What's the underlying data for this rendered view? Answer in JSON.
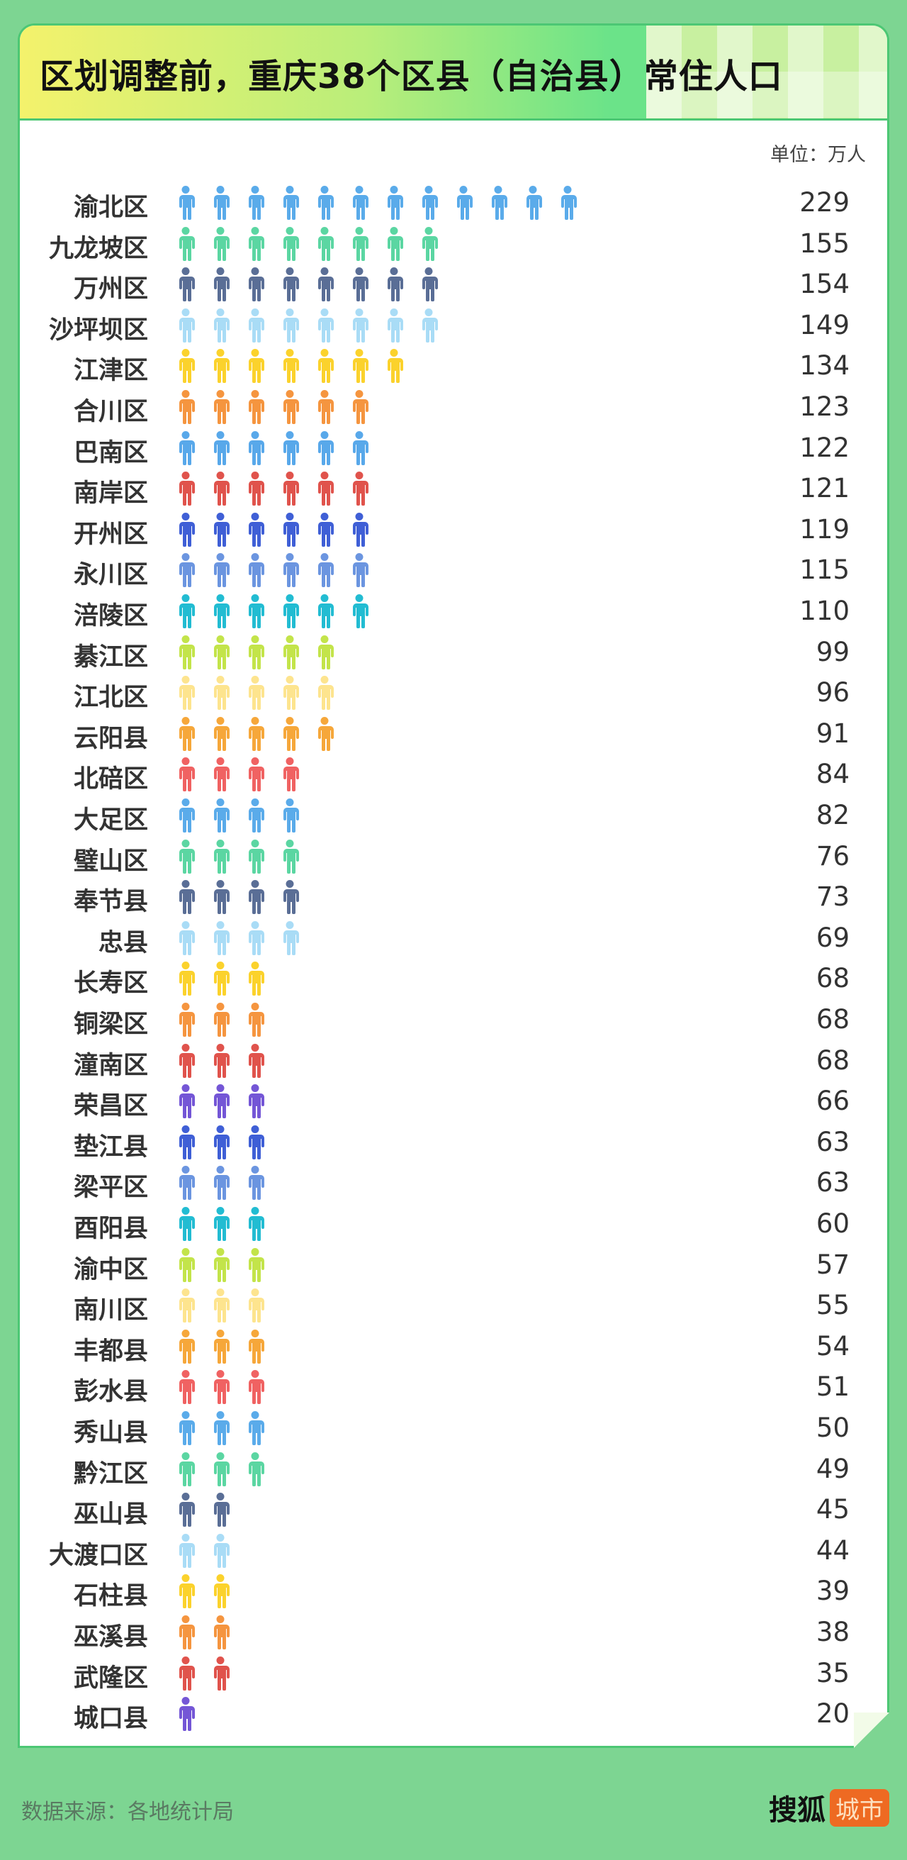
{
  "title": "区划调整前，重庆38个区县（自治县）常住人口",
  "unit": "单位：万人",
  "footer": {
    "source": "数据来源：各地统计局",
    "logo_main": "搜狐",
    "logo_tag": "城市"
  },
  "colors": {
    "background": "#7dd592",
    "accent": "#4cc774",
    "logo": "#ee6a22"
  },
  "chart_data": {
    "type": "pictogram-bar",
    "icon": "person-icon",
    "categories": [
      "渝北区",
      "九龙坡区",
      "万州区",
      "沙坪坝区",
      "江津区",
      "合川区",
      "巴南区",
      "南岸区",
      "开州区",
      "永川区",
      "涪陵区",
      "綦江区",
      "江北区",
      "云阳县",
      "北碚区",
      "大足区",
      "璧山区",
      "奉节县",
      "忠县",
      "长寿区",
      "铜梁区",
      "潼南区",
      "荣昌区",
      "垫江县",
      "梁平区",
      "酉阳县",
      "渝中区",
      "南川区",
      "丰都县",
      "彭水县",
      "秀山县",
      "黔江区",
      "巫山县",
      "大渡口区",
      "石柱县",
      "巫溪县",
      "武隆区",
      "城口县"
    ],
    "values": [
      229,
      155,
      154,
      149,
      134,
      123,
      122,
      121,
      119,
      115,
      110,
      99,
      96,
      91,
      84,
      82,
      76,
      73,
      69,
      68,
      68,
      68,
      66,
      63,
      63,
      60,
      57,
      55,
      54,
      51,
      50,
      49,
      45,
      44,
      39,
      38,
      35,
      20
    ],
    "icon_counts": [
      12,
      8,
      8,
      8,
      7,
      6,
      6,
      6,
      6,
      6,
      6,
      5,
      5,
      5,
      4,
      4,
      4,
      4,
      4,
      3,
      3,
      3,
      3,
      3,
      3,
      3,
      3,
      3,
      3,
      3,
      3,
      3,
      2,
      2,
      2,
      2,
      2,
      1
    ],
    "row_colors": [
      "#5aabea",
      "#5bd6a2",
      "#5a6e96",
      "#a9dcf6",
      "#fbd22c",
      "#f5953f",
      "#58a8ea",
      "#e0534c",
      "#3f5fd6",
      "#6b95e0",
      "#22bcd2",
      "#c3e44a",
      "#fde48e",
      "#f6a73a",
      "#f06262",
      "#5aabea",
      "#5bd6a2",
      "#5a6e96",
      "#a9dcf6",
      "#fbd22c",
      "#f5953f",
      "#e0534c",
      "#7456d6",
      "#3f5fd6",
      "#6b95e0",
      "#22bcd2",
      "#c3e44a",
      "#fde48e",
      "#f6a73a",
      "#f06262",
      "#5aabea",
      "#5bd6a2",
      "#5a6e96",
      "#a9dcf6",
      "#fbd22c",
      "#f5953f",
      "#e0534c",
      "#7456d6"
    ]
  }
}
